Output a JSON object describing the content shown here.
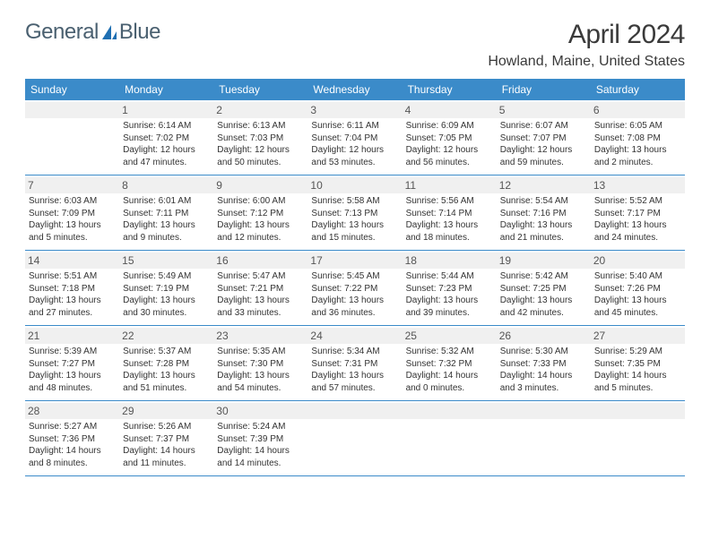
{
  "branding": {
    "logo_text_1": "General",
    "logo_text_2": "Blue",
    "logo_icon_color": "#1f6fb2",
    "logo_text_color": "#4a6070"
  },
  "title": "April 2024",
  "location": "Howland, Maine, United States",
  "colors": {
    "header_bg": "#3b8bc9",
    "header_text": "#ffffff",
    "daynum_bg": "#f0f0f0",
    "row_border": "#3b8bc9",
    "body_text": "#333333",
    "page_bg": "#ffffff"
  },
  "days_of_week": [
    "Sunday",
    "Monday",
    "Tuesday",
    "Wednesday",
    "Thursday",
    "Friday",
    "Saturday"
  ],
  "weeks": [
    [
      {
        "n": "",
        "lines": []
      },
      {
        "n": "1",
        "lines": [
          "Sunrise: 6:14 AM",
          "Sunset: 7:02 PM",
          "Daylight: 12 hours and 47 minutes."
        ]
      },
      {
        "n": "2",
        "lines": [
          "Sunrise: 6:13 AM",
          "Sunset: 7:03 PM",
          "Daylight: 12 hours and 50 minutes."
        ]
      },
      {
        "n": "3",
        "lines": [
          "Sunrise: 6:11 AM",
          "Sunset: 7:04 PM",
          "Daylight: 12 hours and 53 minutes."
        ]
      },
      {
        "n": "4",
        "lines": [
          "Sunrise: 6:09 AM",
          "Sunset: 7:05 PM",
          "Daylight: 12 hours and 56 minutes."
        ]
      },
      {
        "n": "5",
        "lines": [
          "Sunrise: 6:07 AM",
          "Sunset: 7:07 PM",
          "Daylight: 12 hours and 59 minutes."
        ]
      },
      {
        "n": "6",
        "lines": [
          "Sunrise: 6:05 AM",
          "Sunset: 7:08 PM",
          "Daylight: 13 hours and 2 minutes."
        ]
      }
    ],
    [
      {
        "n": "7",
        "lines": [
          "Sunrise: 6:03 AM",
          "Sunset: 7:09 PM",
          "Daylight: 13 hours and 5 minutes."
        ]
      },
      {
        "n": "8",
        "lines": [
          "Sunrise: 6:01 AM",
          "Sunset: 7:11 PM",
          "Daylight: 13 hours and 9 minutes."
        ]
      },
      {
        "n": "9",
        "lines": [
          "Sunrise: 6:00 AM",
          "Sunset: 7:12 PM",
          "Daylight: 13 hours and 12 minutes."
        ]
      },
      {
        "n": "10",
        "lines": [
          "Sunrise: 5:58 AM",
          "Sunset: 7:13 PM",
          "Daylight: 13 hours and 15 minutes."
        ]
      },
      {
        "n": "11",
        "lines": [
          "Sunrise: 5:56 AM",
          "Sunset: 7:14 PM",
          "Daylight: 13 hours and 18 minutes."
        ]
      },
      {
        "n": "12",
        "lines": [
          "Sunrise: 5:54 AM",
          "Sunset: 7:16 PM",
          "Daylight: 13 hours and 21 minutes."
        ]
      },
      {
        "n": "13",
        "lines": [
          "Sunrise: 5:52 AM",
          "Sunset: 7:17 PM",
          "Daylight: 13 hours and 24 minutes."
        ]
      }
    ],
    [
      {
        "n": "14",
        "lines": [
          "Sunrise: 5:51 AM",
          "Sunset: 7:18 PM",
          "Daylight: 13 hours and 27 minutes."
        ]
      },
      {
        "n": "15",
        "lines": [
          "Sunrise: 5:49 AM",
          "Sunset: 7:19 PM",
          "Daylight: 13 hours and 30 minutes."
        ]
      },
      {
        "n": "16",
        "lines": [
          "Sunrise: 5:47 AM",
          "Sunset: 7:21 PM",
          "Daylight: 13 hours and 33 minutes."
        ]
      },
      {
        "n": "17",
        "lines": [
          "Sunrise: 5:45 AM",
          "Sunset: 7:22 PM",
          "Daylight: 13 hours and 36 minutes."
        ]
      },
      {
        "n": "18",
        "lines": [
          "Sunrise: 5:44 AM",
          "Sunset: 7:23 PM",
          "Daylight: 13 hours and 39 minutes."
        ]
      },
      {
        "n": "19",
        "lines": [
          "Sunrise: 5:42 AM",
          "Sunset: 7:25 PM",
          "Daylight: 13 hours and 42 minutes."
        ]
      },
      {
        "n": "20",
        "lines": [
          "Sunrise: 5:40 AM",
          "Sunset: 7:26 PM",
          "Daylight: 13 hours and 45 minutes."
        ]
      }
    ],
    [
      {
        "n": "21",
        "lines": [
          "Sunrise: 5:39 AM",
          "Sunset: 7:27 PM",
          "Daylight: 13 hours and 48 minutes."
        ]
      },
      {
        "n": "22",
        "lines": [
          "Sunrise: 5:37 AM",
          "Sunset: 7:28 PM",
          "Daylight: 13 hours and 51 minutes."
        ]
      },
      {
        "n": "23",
        "lines": [
          "Sunrise: 5:35 AM",
          "Sunset: 7:30 PM",
          "Daylight: 13 hours and 54 minutes."
        ]
      },
      {
        "n": "24",
        "lines": [
          "Sunrise: 5:34 AM",
          "Sunset: 7:31 PM",
          "Daylight: 13 hours and 57 minutes."
        ]
      },
      {
        "n": "25",
        "lines": [
          "Sunrise: 5:32 AM",
          "Sunset: 7:32 PM",
          "Daylight: 14 hours and 0 minutes."
        ]
      },
      {
        "n": "26",
        "lines": [
          "Sunrise: 5:30 AM",
          "Sunset: 7:33 PM",
          "Daylight: 14 hours and 3 minutes."
        ]
      },
      {
        "n": "27",
        "lines": [
          "Sunrise: 5:29 AM",
          "Sunset: 7:35 PM",
          "Daylight: 14 hours and 5 minutes."
        ]
      }
    ],
    [
      {
        "n": "28",
        "lines": [
          "Sunrise: 5:27 AM",
          "Sunset: 7:36 PM",
          "Daylight: 14 hours and 8 minutes."
        ]
      },
      {
        "n": "29",
        "lines": [
          "Sunrise: 5:26 AM",
          "Sunset: 7:37 PM",
          "Daylight: 14 hours and 11 minutes."
        ]
      },
      {
        "n": "30",
        "lines": [
          "Sunrise: 5:24 AM",
          "Sunset: 7:39 PM",
          "Daylight: 14 hours and 14 minutes."
        ]
      },
      {
        "n": "",
        "lines": []
      },
      {
        "n": "",
        "lines": []
      },
      {
        "n": "",
        "lines": []
      },
      {
        "n": "",
        "lines": []
      }
    ]
  ]
}
